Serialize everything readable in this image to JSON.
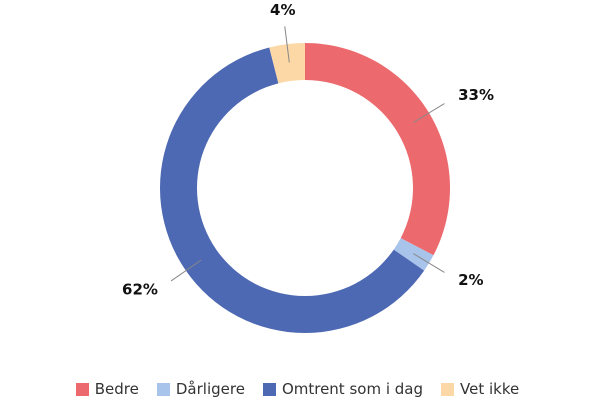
{
  "chart_data": {
    "type": "pie",
    "categories": [
      "Bedre",
      "Dårligere",
      "Omtrent som i dag",
      "Vet ikke"
    ],
    "values": [
      33,
      2,
      62,
      4
    ],
    "value_labels": [
      "33%",
      "2%",
      "62%",
      "4%"
    ],
    "colors": [
      "#ec6a6e",
      "#a8c4ea",
      "#4e69b3",
      "#fcd8a6"
    ],
    "legend": "bottom"
  }
}
